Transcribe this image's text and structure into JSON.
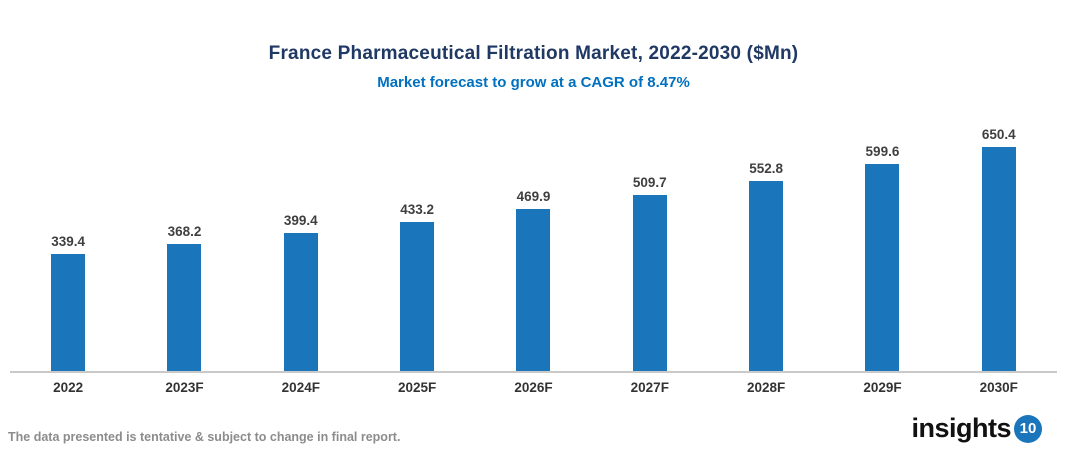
{
  "header": {
    "title": "France Pharmaceutical Filtration Market, 2022-2030 ($Mn)",
    "subtitle": "Market forecast to grow at a CAGR of 8.47%"
  },
  "chart_data": {
    "type": "bar",
    "categories": [
      "2022",
      "2023F",
      "2024F",
      "2025F",
      "2026F",
      "2027F",
      "2028F",
      "2029F",
      "2030F"
    ],
    "values": [
      339.4,
      368.2,
      399.4,
      433.2,
      469.9,
      509.7,
      552.8,
      599.6,
      650.4
    ],
    "title": "France Pharmaceutical Filtration Market, 2022-2030 ($Mn)",
    "subtitle": "Market forecast to grow at a CAGR of 8.47%",
    "xlabel": "",
    "ylabel": "",
    "ylim": [
      0,
      700
    ],
    "grid": false,
    "legend": false,
    "data_labels": true,
    "bar_color": "#1B75BB"
  },
  "footer": {
    "note": "The data presented is tentative & subject to change in final report.",
    "logo_text": "insights",
    "logo_badge": "10"
  },
  "colors": {
    "title": "#1F3864",
    "subtitle": "#0070C0",
    "bar": "#1B75BB",
    "axis_line": "#C9C9C9",
    "value_label": "#3F3F3F",
    "category_label": "#333333",
    "footer_note": "#8C8C8C",
    "logo_badge_bg": "#1B75BB"
  }
}
